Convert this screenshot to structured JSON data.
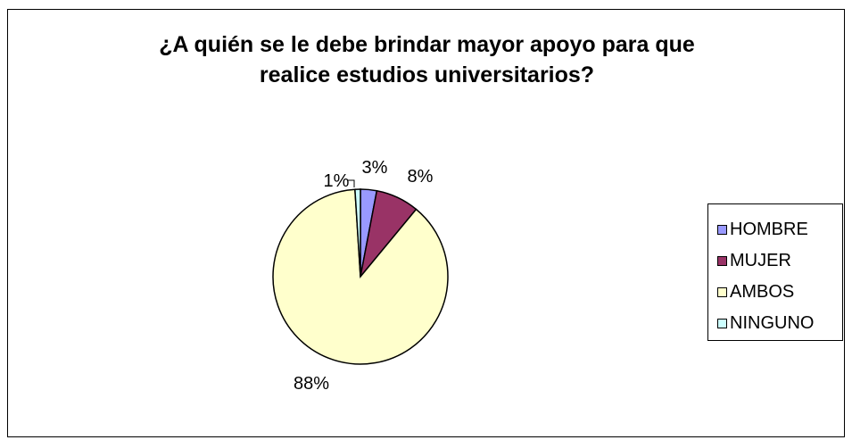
{
  "chart_data": {
    "type": "pie",
    "title_lines": [
      "¿A quién se le debe brindar mayor apoyo para que",
      "realice estudios universitarios?"
    ],
    "categories": [
      "HOMBRE",
      "MUJER",
      "AMBOS",
      "NINGUNO"
    ],
    "values": [
      3,
      8,
      88,
      1
    ],
    "value_labels": [
      "3%",
      "8%",
      "88%",
      "1%"
    ],
    "colors": [
      "#9999ff",
      "#993366",
      "#ffffcc",
      "#ccffff"
    ],
    "legend_position": "right"
  }
}
